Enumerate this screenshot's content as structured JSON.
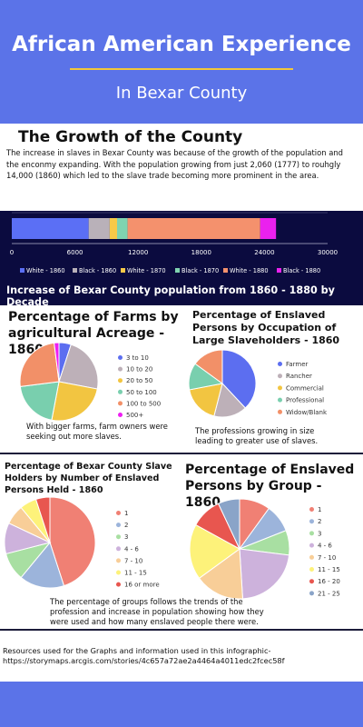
{
  "header": {
    "title": "African American Experience",
    "subtitle": "In Bexar County"
  },
  "growth": {
    "heading": "The Growth of the County",
    "intro": "The increase in slaves in Bexar County was because of the growth of the population and the enconmy expanding.  With the population growing from just 2,060 (1777) to rouhgly 14,000 (1860) which led to the slave trade becoming more prominent in the area.",
    "bar_caption": "Increase of Bexar County population from 1860 - 1880 by Decade"
  },
  "farms_note": "With bigger farms, farm owners were seeking out more slaves.",
  "occupation_note": "The professions growing in size leading to greater use of slaves.",
  "groups_note": "The percentage of groups follows the trends of the profession and increase in population showing how they were used and how many enslaved people there were.",
  "resources": "Resources used for the Graphs and information used in this infographic-https://storymaps.arcgis.com/stories/4c657a72ae2a4464a4011edc2fcec58f",
  "colors": {
    "brand_blue": "#5b73e8",
    "dark_navy": "#0b0b3f",
    "accent_yellow": "#f2c73b"
  },
  "chart_data": [
    {
      "id": "population",
      "type": "bar",
      "orientation": "horizontal",
      "stacked": true,
      "title": "",
      "xlim": [
        0,
        30000
      ],
      "x_ticks": [
        "0",
        "6000",
        "12000",
        "18000",
        "24000",
        "30000"
      ],
      "legend_position": "bottom",
      "series": [
        {
          "name": "White - 1860",
          "value": 7300,
          "color": "#5b6ff5"
        },
        {
          "name": "Black - 1860",
          "value": 2000,
          "color": "#b9b1b9"
        },
        {
          "name": "White - 1870",
          "value": 700,
          "color": "#f7c948"
        },
        {
          "name": "Black - 1870",
          "value": 1000,
          "color": "#7fd3b0"
        },
        {
          "name": "White - 1880",
          "value": 12600,
          "color": "#f4916d"
        },
        {
          "name": "Black - 1880",
          "value": 1500,
          "color": "#ea21ee"
        }
      ]
    },
    {
      "id": "farms",
      "type": "pie",
      "title": "Percentage of Farms by agricultural Acreage - 1860",
      "legend_position": "right",
      "labels": [
        "3 to 10",
        "10 to 20",
        "20 to 50",
        "50 to 100",
        "100 to 500",
        "500+"
      ],
      "values": [
        5,
        23,
        25,
        20,
        25,
        2
      ],
      "colors": [
        "#5c6ef0",
        "#bdb0b8",
        "#f2c541",
        "#79cfae",
        "#f29068",
        "#ee1ef2"
      ]
    },
    {
      "id": "occupation",
      "type": "pie",
      "title": "Percentage of Enslaved Persons by Occupation of Large Slaveholders - 1860",
      "legend_position": "right",
      "labels": [
        "Farmer",
        "Rancher",
        "Commercial",
        "Professional",
        "Widow/Blank"
      ],
      "values": [
        38,
        16,
        18,
        13,
        15
      ],
      "colors": [
        "#5c6ef0",
        "#bdb0b8",
        "#f2c541",
        "#79cfae",
        "#f29068"
      ]
    },
    {
      "id": "holders",
      "type": "pie",
      "title": "Percentage of Bexar County Slave Holders by Number of Enslaved Persons Held - 1860",
      "legend_position": "right",
      "labels": [
        "1",
        "2",
        "3",
        "4 - 6",
        "7 - 10",
        "11 - 15",
        "16 or more"
      ],
      "values": [
        45,
        16,
        10,
        11,
        7,
        6,
        5
      ],
      "colors": [
        "#f08074",
        "#9cb4db",
        "#a8dfa2",
        "#cdb2dc",
        "#f8ce98",
        "#fdf27a",
        "#e8564f"
      ]
    },
    {
      "id": "groups",
      "type": "pie",
      "title": "Percentage of Enslaved Persons by Group - 1860",
      "legend_position": "right",
      "labels": [
        "1",
        "2",
        "3",
        "4 - 6",
        "7 - 10",
        "11 - 15",
        "16 - 20",
        "21 - 25"
      ],
      "values": [
        10,
        9,
        8,
        22,
        16,
        18,
        10,
        7
      ],
      "colors": [
        "#f08074",
        "#9cb4db",
        "#a8dfa2",
        "#cdb2dc",
        "#f8ce98",
        "#fdf27a",
        "#e8564f",
        "#8aa4c8"
      ]
    }
  ]
}
